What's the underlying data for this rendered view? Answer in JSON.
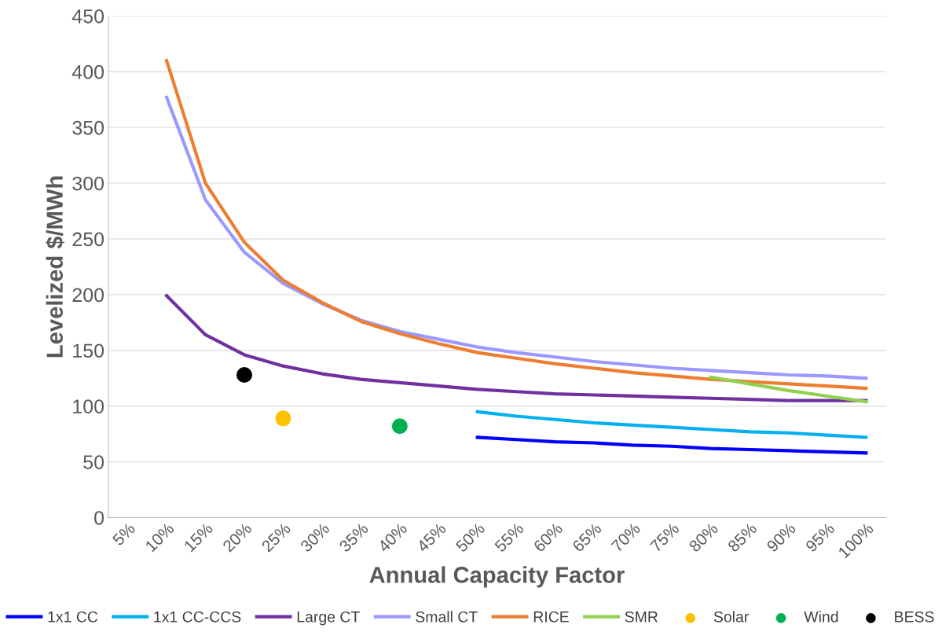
{
  "chart_data": {
    "type": "line",
    "xlabel": "Annual Capacity Factor",
    "ylabel": "Levelized $/MWh",
    "categories": [
      "5%",
      "10%",
      "15%",
      "20%",
      "25%",
      "30%",
      "35%",
      "40%",
      "45%",
      "50%",
      "55%",
      "60%",
      "65%",
      "70%",
      "75%",
      "80%",
      "85%",
      "90%",
      "95%",
      "100%"
    ],
    "ylim": [
      0,
      450
    ],
    "yticks": [
      0,
      50,
      100,
      150,
      200,
      250,
      300,
      350,
      400,
      450
    ],
    "grid": "y",
    "legend": "bottom",
    "marker": "none",
    "line_style": "solid",
    "series": [
      {
        "name": "1x1 CC",
        "color": "#0000ff",
        "values": [
          null,
          null,
          null,
          null,
          null,
          null,
          null,
          null,
          null,
          72,
          70,
          68,
          67,
          65,
          64,
          62,
          61,
          60,
          59,
          58
        ]
      },
      {
        "name": "1x1 CC-CCS",
        "color": "#00b0f0",
        "values": [
          null,
          null,
          null,
          null,
          null,
          null,
          null,
          null,
          null,
          95,
          91,
          88,
          85,
          83,
          81,
          79,
          77,
          76,
          74,
          72
        ]
      },
      {
        "name": "Large CT",
        "color": "#7030a0",
        "values": [
          null,
          199,
          164,
          146,
          136,
          129,
          124,
          121,
          118,
          115,
          113,
          111,
          110,
          109,
          108,
          107,
          106,
          105,
          105,
          105
        ]
      },
      {
        "name": "Small CT",
        "color": "#9999ff",
        "values": [
          null,
          377,
          285,
          238,
          210,
          192,
          177,
          167,
          160,
          153,
          148,
          144,
          140,
          137,
          134,
          132,
          130,
          128,
          127,
          125
        ]
      },
      {
        "name": "RICE",
        "color": "#ed7d31",
        "values": [
          null,
          410,
          300,
          247,
          213,
          193,
          176,
          165,
          156,
          148,
          143,
          138,
          134,
          130,
          127,
          124,
          122,
          120,
          118,
          116
        ]
      },
      {
        "name": "SMR",
        "color": "#92d050",
        "values": [
          null,
          null,
          null,
          null,
          null,
          null,
          null,
          null,
          null,
          null,
          null,
          null,
          null,
          null,
          null,
          126,
          120,
          114,
          109,
          104
        ]
      },
      {
        "name": "Solar",
        "type": "scatter",
        "marker": "circle",
        "color": "#ffc000",
        "values": [
          null,
          null,
          null,
          null,
          89,
          null,
          null,
          null,
          null,
          null,
          null,
          null,
          null,
          null,
          null,
          null,
          null,
          null,
          null,
          null
        ]
      },
      {
        "name": "Wind",
        "type": "scatter",
        "marker": "circle",
        "color": "#00b050",
        "values": [
          null,
          null,
          null,
          null,
          null,
          null,
          null,
          82,
          null,
          null,
          null,
          null,
          null,
          null,
          null,
          null,
          null,
          null,
          null,
          null
        ]
      },
      {
        "name": "BESS",
        "type": "scatter",
        "marker": "circle",
        "color": "#000000",
        "values": [
          null,
          null,
          null,
          128,
          null,
          null,
          null,
          null,
          null,
          null,
          null,
          null,
          null,
          null,
          null,
          null,
          null,
          null,
          null,
          null
        ]
      }
    ]
  }
}
